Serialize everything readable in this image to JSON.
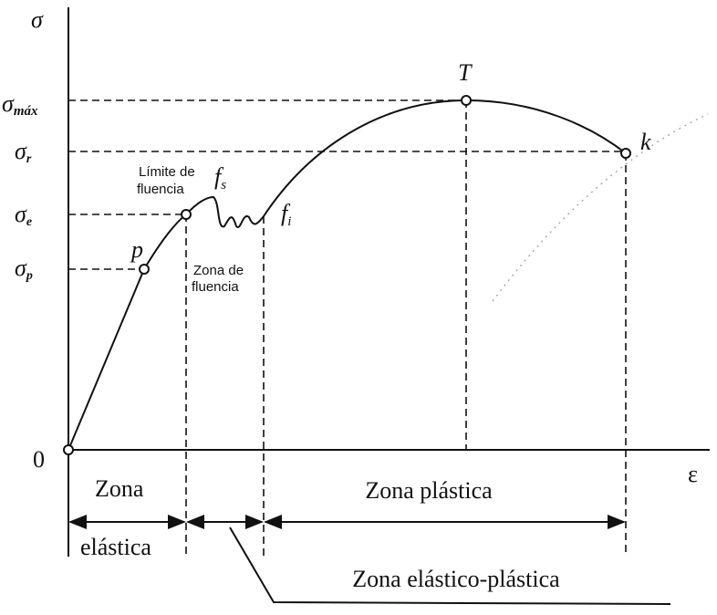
{
  "axes": {
    "y_label": "σ",
    "x_label": "ε",
    "origin": "0"
  },
  "y_levels": [
    {
      "symbol": "σ",
      "sub": "máx"
    },
    {
      "symbol": "σ",
      "sub": "r"
    },
    {
      "symbol": "σ",
      "sub": "e"
    },
    {
      "symbol": "σ",
      "sub": "p"
    }
  ],
  "points": {
    "p": "p",
    "T": "T",
    "k": "k",
    "fs": {
      "symbol": "f",
      "sub": "s"
    },
    "fi": {
      "symbol": "f",
      "sub": "i"
    }
  },
  "notes": {
    "limit": [
      "Límite de",
      "fluencia"
    ],
    "yield_zone": [
      "Zona de",
      "fluencia"
    ]
  },
  "zones": {
    "elastic": [
      "Zona",
      "elástica"
    ],
    "plastic": "Zona plástica",
    "elastic_plastic": "Zona elástico-plástica"
  }
}
